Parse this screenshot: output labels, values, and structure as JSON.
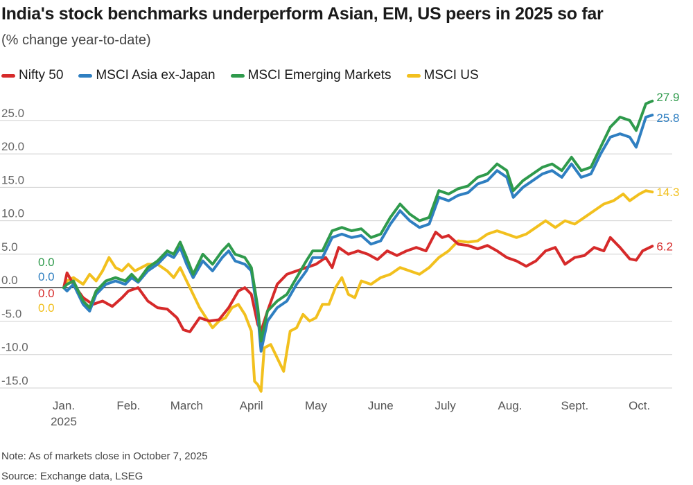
{
  "title": "India's stock benchmarks underperform Asian, EM, US peers in 2025 so far",
  "subtitle": "(% change year-to-date)",
  "note": "Note: As of markets close in October 7, 2025",
  "source": "Source: Exchange data, LSEG",
  "chart_data": {
    "type": "line",
    "ylim": [
      -15,
      28.5
    ],
    "xlim": [
      0,
      9.3
    ],
    "grid": true,
    "legend_position": "top-left",
    "y_ticks": [
      {
        "value": 25,
        "label": "25.0"
      },
      {
        "value": 20,
        "label": "20.0"
      },
      {
        "value": 15,
        "label": "15.0"
      },
      {
        "value": 10,
        "label": "10.0"
      },
      {
        "value": 5,
        "label": "5.0"
      },
      {
        "value": 0,
        "label": "0.0"
      },
      {
        "value": -5,
        "label": "-5.0"
      },
      {
        "value": -10,
        "label": "-10.0"
      },
      {
        "value": -15,
        "label": "-15.0"
      }
    ],
    "x_ticks": [
      {
        "pos": 0.0,
        "label": "Jan.",
        "sublabel": "2025"
      },
      {
        "pos": 1.0,
        "label": "Feb."
      },
      {
        "pos": 1.9,
        "label": "March"
      },
      {
        "pos": 2.9,
        "label": "April"
      },
      {
        "pos": 3.9,
        "label": "May"
      },
      {
        "pos": 4.9,
        "label": "June"
      },
      {
        "pos": 5.9,
        "label": "July"
      },
      {
        "pos": 6.9,
        "label": "Aug."
      },
      {
        "pos": 7.9,
        "label": "Sept."
      },
      {
        "pos": 8.9,
        "label": "Oct."
      }
    ],
    "series": [
      {
        "name": "Nifty 50",
        "color": "#d62a2a",
        "start_label": "0.0",
        "end_label": "6.2",
        "points": [
          [
            0,
            0
          ],
          [
            0.05,
            2.2
          ],
          [
            0.15,
            0.5
          ],
          [
            0.3,
            -1.5
          ],
          [
            0.45,
            -2.5
          ],
          [
            0.6,
            -2.0
          ],
          [
            0.75,
            -2.8
          ],
          [
            0.9,
            -1.5
          ],
          [
            1.0,
            -0.5
          ],
          [
            1.15,
            0
          ],
          [
            1.3,
            -2.0
          ],
          [
            1.45,
            -3.0
          ],
          [
            1.6,
            -3.2
          ],
          [
            1.75,
            -4.5
          ],
          [
            1.85,
            -6.3
          ],
          [
            1.95,
            -6.6
          ],
          [
            2.1,
            -4.5
          ],
          [
            2.25,
            -5.0
          ],
          [
            2.4,
            -4.8
          ],
          [
            2.55,
            -3.0
          ],
          [
            2.7,
            -0.5
          ],
          [
            2.8,
            0
          ],
          [
            2.9,
            -1.0
          ],
          [
            3.0,
            -5.5
          ],
          [
            3.05,
            -6.5
          ],
          [
            3.15,
            -3.5
          ],
          [
            3.3,
            0.5
          ],
          [
            3.45,
            2.0
          ],
          [
            3.6,
            2.5
          ],
          [
            3.75,
            3.0
          ],
          [
            3.9,
            3.5
          ],
          [
            4.05,
            4.5
          ],
          [
            4.15,
            3.0
          ],
          [
            4.25,
            6.0
          ],
          [
            4.4,
            5.0
          ],
          [
            4.55,
            5.5
          ],
          [
            4.7,
            5.0
          ],
          [
            4.85,
            4.2
          ],
          [
            5.0,
            5.5
          ],
          [
            5.15,
            4.8
          ],
          [
            5.3,
            5.5
          ],
          [
            5.45,
            6.0
          ],
          [
            5.6,
            5.5
          ],
          [
            5.75,
            8.3
          ],
          [
            5.85,
            7.5
          ],
          [
            5.95,
            7.8
          ],
          [
            6.1,
            6.5
          ],
          [
            6.25,
            6.3
          ],
          [
            6.4,
            5.8
          ],
          [
            6.55,
            6.3
          ],
          [
            6.7,
            5.5
          ],
          [
            6.85,
            4.5
          ],
          [
            7.0,
            4.0
          ],
          [
            7.15,
            3.2
          ],
          [
            7.3,
            4.0
          ],
          [
            7.45,
            5.5
          ],
          [
            7.6,
            6.0
          ],
          [
            7.75,
            3.5
          ],
          [
            7.9,
            4.5
          ],
          [
            8.05,
            4.8
          ],
          [
            8.2,
            6.0
          ],
          [
            8.35,
            5.5
          ],
          [
            8.45,
            7.5
          ],
          [
            8.6,
            6.0
          ],
          [
            8.75,
            4.3
          ],
          [
            8.85,
            4.1
          ],
          [
            8.95,
            5.5
          ],
          [
            9.1,
            6.2
          ]
        ]
      },
      {
        "name": "MSCI Asia ex-Japan",
        "color": "#2f7fc1",
        "start_label": "0.0",
        "end_label": "25.8",
        "points": [
          [
            0,
            0
          ],
          [
            0.05,
            -0.5
          ],
          [
            0.15,
            0.5
          ],
          [
            0.3,
            -2.5
          ],
          [
            0.4,
            -3.5
          ],
          [
            0.5,
            -1.0
          ],
          [
            0.65,
            0.5
          ],
          [
            0.8,
            1.0
          ],
          [
            0.95,
            0.5
          ],
          [
            1.05,
            1.5
          ],
          [
            1.15,
            0.8
          ],
          [
            1.3,
            2.5
          ],
          [
            1.45,
            3.5
          ],
          [
            1.6,
            5.0
          ],
          [
            1.7,
            4.5
          ],
          [
            1.8,
            6.0
          ],
          [
            1.9,
            3.5
          ],
          [
            2.0,
            1.5
          ],
          [
            2.15,
            4.0
          ],
          [
            2.3,
            2.5
          ],
          [
            2.45,
            4.5
          ],
          [
            2.55,
            5.5
          ],
          [
            2.65,
            4.0
          ],
          [
            2.8,
            3.5
          ],
          [
            2.9,
            2.5
          ],
          [
            3.0,
            -4.0
          ],
          [
            3.05,
            -9.5
          ],
          [
            3.15,
            -5.0
          ],
          [
            3.3,
            -3.0
          ],
          [
            3.45,
            -2.0
          ],
          [
            3.6,
            0.5
          ],
          [
            3.75,
            2.5
          ],
          [
            3.85,
            4.5
          ],
          [
            4.0,
            4.5
          ],
          [
            4.15,
            7.5
          ],
          [
            4.3,
            8.0
          ],
          [
            4.45,
            7.5
          ],
          [
            4.6,
            7.8
          ],
          [
            4.75,
            6.5
          ],
          [
            4.9,
            7.0
          ],
          [
            5.05,
            9.5
          ],
          [
            5.2,
            11.5
          ],
          [
            5.35,
            10.0
          ],
          [
            5.5,
            9.0
          ],
          [
            5.65,
            9.5
          ],
          [
            5.8,
            13.5
          ],
          [
            5.95,
            13.0
          ],
          [
            6.1,
            13.8
          ],
          [
            6.25,
            14.2
          ],
          [
            6.4,
            15.5
          ],
          [
            6.55,
            16.0
          ],
          [
            6.7,
            17.5
          ],
          [
            6.85,
            16.5
          ],
          [
            6.95,
            13.5
          ],
          [
            7.1,
            15.0
          ],
          [
            7.25,
            16.0
          ],
          [
            7.4,
            17.0
          ],
          [
            7.55,
            17.5
          ],
          [
            7.7,
            16.5
          ],
          [
            7.85,
            18.5
          ],
          [
            8.0,
            16.5
          ],
          [
            8.15,
            17.0
          ],
          [
            8.3,
            20.0
          ],
          [
            8.45,
            22.5
          ],
          [
            8.6,
            23.0
          ],
          [
            8.75,
            22.5
          ],
          [
            8.85,
            21.0
          ],
          [
            9.0,
            25.5
          ],
          [
            9.1,
            25.8
          ]
        ]
      },
      {
        "name": "MSCI Emerging Markets",
        "color": "#2f9a4c",
        "start_label": "0.0",
        "end_label": "27.9",
        "points": [
          [
            0,
            0
          ],
          [
            0.05,
            0.5
          ],
          [
            0.15,
            1.0
          ],
          [
            0.3,
            -2.0
          ],
          [
            0.4,
            -3.0
          ],
          [
            0.5,
            -0.5
          ],
          [
            0.65,
            1.0
          ],
          [
            0.8,
            1.5
          ],
          [
            0.95,
            1.0
          ],
          [
            1.05,
            2.0
          ],
          [
            1.15,
            1.0
          ],
          [
            1.3,
            3.0
          ],
          [
            1.45,
            4.0
          ],
          [
            1.6,
            5.5
          ],
          [
            1.7,
            5.0
          ],
          [
            1.8,
            6.8
          ],
          [
            1.9,
            4.5
          ],
          [
            2.0,
            2.0
          ],
          [
            2.15,
            5.0
          ],
          [
            2.3,
            3.5
          ],
          [
            2.45,
            5.5
          ],
          [
            2.55,
            6.5
          ],
          [
            2.65,
            5.0
          ],
          [
            2.8,
            4.5
          ],
          [
            2.9,
            3.0
          ],
          [
            3.0,
            -3.0
          ],
          [
            3.05,
            -8.0
          ],
          [
            3.15,
            -3.5
          ],
          [
            3.3,
            -2.0
          ],
          [
            3.45,
            -1.0
          ],
          [
            3.6,
            1.5
          ],
          [
            3.75,
            4.0
          ],
          [
            3.85,
            5.5
          ],
          [
            4.0,
            5.5
          ],
          [
            4.15,
            8.5
          ],
          [
            4.3,
            9.0
          ],
          [
            4.45,
            8.5
          ],
          [
            4.6,
            8.8
          ],
          [
            4.75,
            7.5
          ],
          [
            4.9,
            8.0
          ],
          [
            5.05,
            10.5
          ],
          [
            5.2,
            12.5
          ],
          [
            5.35,
            11.0
          ],
          [
            5.5,
            10.0
          ],
          [
            5.65,
            10.5
          ],
          [
            5.8,
            14.5
          ],
          [
            5.95,
            14.0
          ],
          [
            6.1,
            14.8
          ],
          [
            6.25,
            15.2
          ],
          [
            6.4,
            16.5
          ],
          [
            6.55,
            17.0
          ],
          [
            6.7,
            18.5
          ],
          [
            6.85,
            17.5
          ],
          [
            6.95,
            14.5
          ],
          [
            7.1,
            16.0
          ],
          [
            7.25,
            17.0
          ],
          [
            7.4,
            18.0
          ],
          [
            7.55,
            18.5
          ],
          [
            7.7,
            17.5
          ],
          [
            7.85,
            19.5
          ],
          [
            8.0,
            17.5
          ],
          [
            8.15,
            18.0
          ],
          [
            8.3,
            21.0
          ],
          [
            8.45,
            24.0
          ],
          [
            8.6,
            25.5
          ],
          [
            8.75,
            25.0
          ],
          [
            8.85,
            23.5
          ],
          [
            9.0,
            27.5
          ],
          [
            9.1,
            27.9
          ]
        ]
      },
      {
        "name": "MSCI US",
        "color": "#f2c01e",
        "start_label": "0.0",
        "end_label": "14.3",
        "points": [
          [
            0,
            0
          ],
          [
            0.05,
            1.0
          ],
          [
            0.15,
            1.5
          ],
          [
            0.3,
            0.5
          ],
          [
            0.4,
            2.0
          ],
          [
            0.5,
            1.0
          ],
          [
            0.6,
            2.5
          ],
          [
            0.7,
            4.5
          ],
          [
            0.8,
            3.0
          ],
          [
            0.9,
            2.5
          ],
          [
            1.0,
            3.5
          ],
          [
            1.1,
            2.5
          ],
          [
            1.2,
            3.0
          ],
          [
            1.3,
            3.5
          ],
          [
            1.45,
            3.5
          ],
          [
            1.6,
            2.5
          ],
          [
            1.7,
            1.5
          ],
          [
            1.8,
            3.0
          ],
          [
            1.9,
            1.0
          ],
          [
            2.0,
            -1.0
          ],
          [
            2.1,
            -3.0
          ],
          [
            2.2,
            -4.5
          ],
          [
            2.3,
            -6.0
          ],
          [
            2.4,
            -5.0
          ],
          [
            2.5,
            -4.5
          ],
          [
            2.6,
            -3.0
          ],
          [
            2.7,
            -2.5
          ],
          [
            2.8,
            -4.0
          ],
          [
            2.9,
            -6.5
          ],
          [
            2.95,
            -14.0
          ],
          [
            3.0,
            -14.5
          ],
          [
            3.05,
            -15.5
          ],
          [
            3.1,
            -9.0
          ],
          [
            3.2,
            -8.5
          ],
          [
            3.3,
            -10.5
          ],
          [
            3.4,
            -12.5
          ],
          [
            3.5,
            -6.5
          ],
          [
            3.6,
            -6.0
          ],
          [
            3.7,
            -4.0
          ],
          [
            3.8,
            -5.0
          ],
          [
            3.9,
            -4.5
          ],
          [
            4.0,
            -2.5
          ],
          [
            4.1,
            -2.5
          ],
          [
            4.2,
            0.0
          ],
          [
            4.3,
            1.5
          ],
          [
            4.4,
            -1.0
          ],
          [
            4.5,
            -1.5
          ],
          [
            4.6,
            1.0
          ],
          [
            4.75,
            0.5
          ],
          [
            4.9,
            1.5
          ],
          [
            5.05,
            2.0
          ],
          [
            5.2,
            3.0
          ],
          [
            5.35,
            2.5
          ],
          [
            5.5,
            2.0
          ],
          [
            5.65,
            3.0
          ],
          [
            5.8,
            4.5
          ],
          [
            5.95,
            5.5
          ],
          [
            6.1,
            7.0
          ],
          [
            6.25,
            6.8
          ],
          [
            6.4,
            7.0
          ],
          [
            6.55,
            8.0
          ],
          [
            6.7,
            8.5
          ],
          [
            6.85,
            8.0
          ],
          [
            7.0,
            7.5
          ],
          [
            7.15,
            8.0
          ],
          [
            7.3,
            9.0
          ],
          [
            7.45,
            10.0
          ],
          [
            7.6,
            9.0
          ],
          [
            7.75,
            10.0
          ],
          [
            7.9,
            9.5
          ],
          [
            8.05,
            10.5
          ],
          [
            8.2,
            11.5
          ],
          [
            8.35,
            12.5
          ],
          [
            8.5,
            13.0
          ],
          [
            8.65,
            14.0
          ],
          [
            8.75,
            13.0
          ],
          [
            8.9,
            14.0
          ],
          [
            9.0,
            14.5
          ],
          [
            9.1,
            14.3
          ]
        ]
      }
    ]
  }
}
